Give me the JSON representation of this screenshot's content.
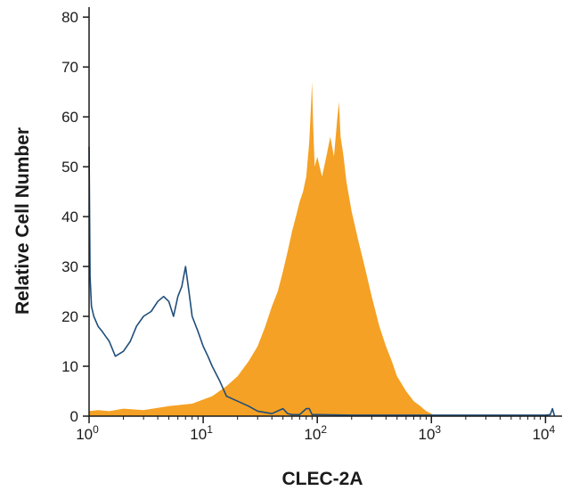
{
  "chart_data": {
    "type": "area",
    "title": "",
    "xlabel": "CLEC-2A",
    "ylabel": "Relative Cell Number",
    "x_scale": "log10",
    "xlim": [
      1,
      13000
    ],
    "ylim": [
      0,
      82
    ],
    "grid": false,
    "legend": "none",
    "x_ticks": [
      {
        "value": 1,
        "base": "10",
        "exp": "0"
      },
      {
        "value": 10,
        "base": "10",
        "exp": "1"
      },
      {
        "value": 100,
        "base": "10",
        "exp": "2"
      },
      {
        "value": 1000,
        "base": "10",
        "exp": "3"
      },
      {
        "value": 10000,
        "base": "10",
        "exp": "4"
      }
    ],
    "y_ticks": [
      0,
      10,
      20,
      30,
      40,
      50,
      60,
      70,
      80
    ],
    "colors": {
      "filled": "#f5a125",
      "outline": "#1f4e7a",
      "axis": "#1a1a1a"
    },
    "series": [
      {
        "style": "filled",
        "x": [
          1,
          1.2,
          1.5,
          2,
          3,
          5,
          8,
          12,
          16,
          20,
          25,
          30,
          35,
          40,
          45,
          50,
          55,
          60,
          65,
          70,
          75,
          80,
          85,
          88,
          90,
          92,
          95,
          100,
          110,
          120,
          130,
          140,
          150,
          155,
          160,
          165,
          170,
          180,
          200,
          230,
          260,
          300,
          350,
          400,
          450,
          500,
          600,
          700,
          800,
          900,
          1000,
          1050
        ],
        "y": [
          1,
          1.2,
          1,
          1.5,
          1.2,
          2,
          2.5,
          4,
          6,
          8,
          11,
          14,
          18,
          22,
          25,
          29,
          33,
          37,
          40,
          43,
          45,
          48,
          55,
          62,
          67,
          58,
          50,
          52,
          48,
          52,
          56,
          52,
          60,
          63,
          56,
          54,
          52,
          47,
          41,
          35,
          30,
          24,
          18,
          14,
          11,
          8,
          5,
          3,
          2,
          1,
          0.5,
          0
        ]
      },
      {
        "style": "outline",
        "x": [
          1,
          1.02,
          1.05,
          1.1,
          1.2,
          1.3,
          1.5,
          1.7,
          2,
          2.3,
          2.6,
          3,
          3.5,
          4,
          4.5,
          5,
          5.5,
          6,
          6.5,
          7,
          7.5,
          8,
          9,
          10,
          11,
          12,
          14,
          16,
          20,
          25,
          30,
          40,
          50,
          55,
          60,
          70,
          80,
          85,
          90,
          100,
          200,
          500,
          1000,
          5000,
          10000,
          11000,
          11500,
          12000
        ],
        "y": [
          54,
          28,
          22,
          20,
          18,
          17,
          15,
          12,
          13,
          15,
          18,
          20,
          21,
          23,
          24,
          23,
          20,
          24,
          26,
          30,
          25,
          20,
          17,
          14,
          12,
          10,
          7,
          4,
          3,
          2,
          1,
          0.5,
          1.5,
          0.5,
          0.3,
          0.3,
          1.5,
          1.5,
          0.3,
          0.3,
          0.2,
          0.2,
          0.2,
          0.2,
          0.2,
          0.3,
          1.5,
          0
        ]
      }
    ]
  }
}
